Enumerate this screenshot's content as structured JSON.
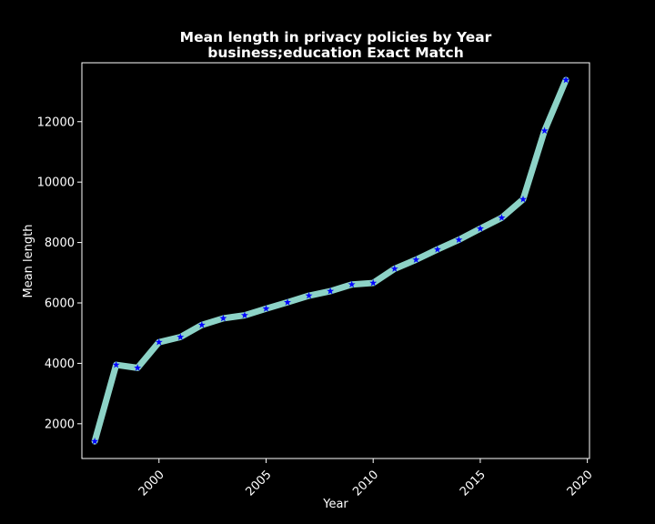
{
  "chart_data": {
    "type": "line",
    "title": "Mean length in privacy policies by Year",
    "subtitle": "business;education Exact Match",
    "xlabel": "Year",
    "ylabel": "Mean length",
    "xlim": [
      1996.4,
      2020.1
    ],
    "ylim": [
      850,
      13950
    ],
    "xticks": [
      2000,
      2005,
      2010,
      2015,
      2020
    ],
    "yticks": [
      2000,
      4000,
      6000,
      8000,
      10000,
      12000
    ],
    "grid": false,
    "legend": "none",
    "x": [
      1997,
      1998,
      1999,
      2000,
      2001,
      2002,
      2003,
      2004,
      2005,
      2006,
      2007,
      2008,
      2009,
      2010,
      2011,
      2012,
      2013,
      2014,
      2015,
      2016,
      2017,
      2018,
      2019
    ],
    "series": [
      {
        "values": [
          1420,
          3950,
          3850,
          4700,
          4870,
          5270,
          5490,
          5590,
          5810,
          6020,
          6240,
          6390,
          6610,
          6660,
          7130,
          7430,
          7770,
          8090,
          8460,
          8820,
          9430,
          11700,
          13380
        ],
        "line_color": "#8dd3c7",
        "marker_color": "#0000ff",
        "marker": "star"
      }
    ],
    "colors": {
      "background": "#000000",
      "axes": "#ffffff",
      "text": "#ffffff"
    }
  }
}
